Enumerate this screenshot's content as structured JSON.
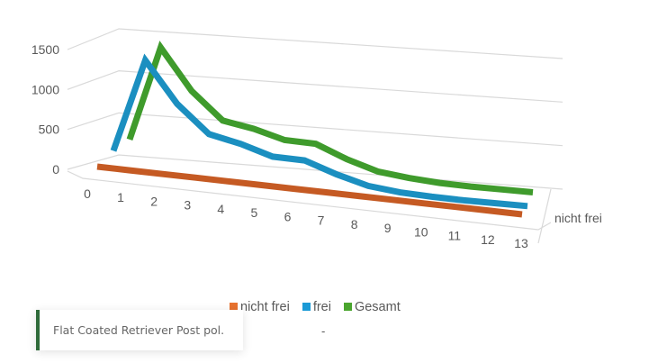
{
  "chart_data": {
    "type": "line",
    "subtype": "3d-line",
    "categories": [
      "0",
      "1",
      "2",
      "3",
      "4",
      "5",
      "6",
      "7",
      "8",
      "9",
      "10",
      "11",
      "12",
      "13"
    ],
    "series": [
      {
        "name": "nicht frei",
        "color": "#c55a23",
        "values": [
          0,
          0,
          0,
          0,
          0,
          0,
          0,
          0,
          0,
          0,
          0,
          0,
          0,
          0
        ]
      },
      {
        "name": "frei",
        "color": "#1b8fc0",
        "values": [
          60,
          1300,
          780,
          430,
          350,
          230,
          230,
          90,
          -20,
          -60,
          -70,
          -70,
          -60,
          -50
        ]
      },
      {
        "name": "Gesamt",
        "color": "#3f9b2c",
        "values": [
          60,
          1320,
          800,
          460,
          400,
          300,
          300,
          140,
          20,
          -20,
          -40,
          -40,
          -30,
          -20
        ]
      }
    ],
    "yticks": [
      0,
      500,
      1000,
      1500
    ],
    "ylim": [
      0,
      1500
    ],
    "depth_label": "nicht frei",
    "legend_position": "bottom"
  },
  "caption": "Flat Coated Retriever Post pol.",
  "dash": "-"
}
